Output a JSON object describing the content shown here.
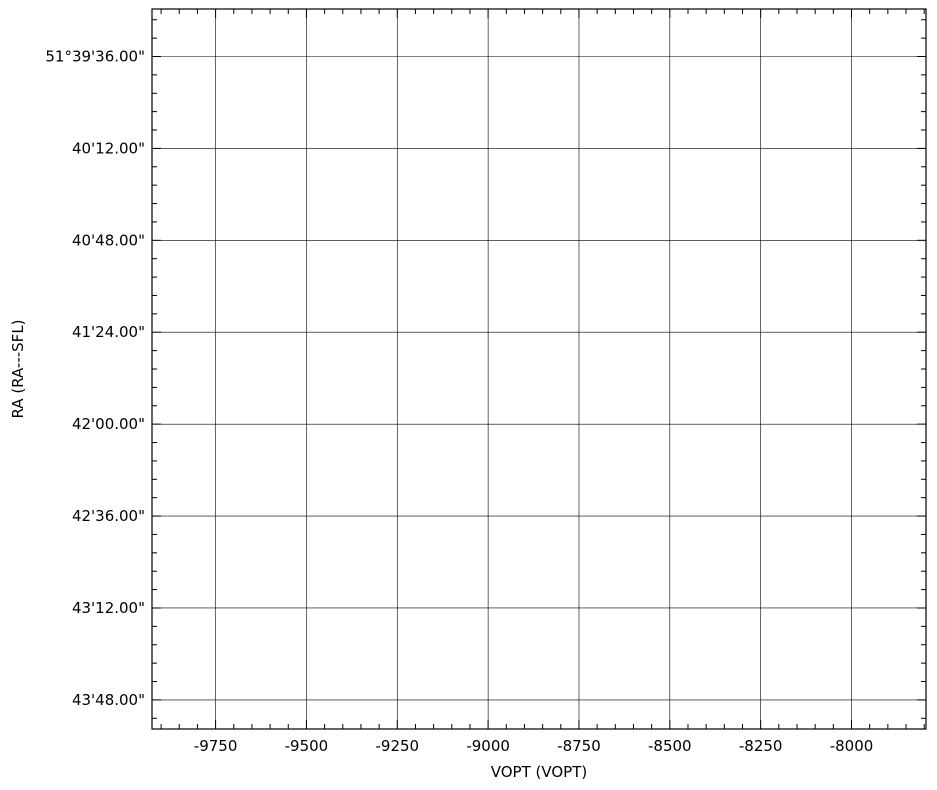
{
  "chart_data": {
    "type": "scatter",
    "xlabel": "VOPT (VOPT)",
    "ylabel": "RA (RA---SFL)",
    "xlim": [
      -9925,
      -7795
    ],
    "ylim": [
      43.99,
      39.29
    ],
    "x_ticks": [
      -9750,
      -9500,
      -9250,
      -9000,
      -8750,
      -8500,
      -8250,
      -8000
    ],
    "x_tick_labels": [
      "-9750",
      "-9500",
      "-9250",
      "-9000",
      "-8750",
      "-8500",
      "-8250",
      "-8000"
    ],
    "y_ticks": [
      39.6,
      40.2,
      40.8,
      41.4,
      42.0,
      42.6,
      43.2,
      43.8
    ],
    "y_tick_labels": [
      "51°39'36.00\"",
      "40'12.00\"",
      "40'48.00\"",
      "41'24.00\"",
      "42'00.00\"",
      "42'36.00\"",
      "43'12.00\"",
      "43'48.00\""
    ],
    "x_minor_step": 50,
    "y_minor_step": 0.12,
    "grid": true,
    "series": []
  }
}
